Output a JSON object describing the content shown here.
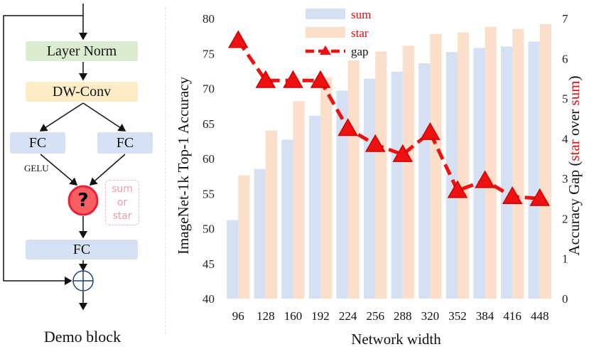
{
  "diagram": {
    "layer_norm": "Layer Norm",
    "dw_conv": "DW-Conv",
    "fc_left": "FC",
    "fc_right": "FC",
    "fc_bottom": "FC",
    "activation": "GELU",
    "question_mark": "?",
    "options": [
      "sum",
      "or",
      "star"
    ],
    "caption": "Demo block"
  },
  "chart_data": {
    "type": "bar",
    "xlabel": "Network width",
    "ylabel": "ImageNet-1k Top-1 Accuracy",
    "y2label_parts": [
      {
        "text": "Accuracy Gap (",
        "color": "#111111"
      },
      {
        "text": "star",
        "color": "#e01010"
      },
      {
        "text": " over ",
        "color": "#111111"
      },
      {
        "text": "sum",
        "color": "#e01010"
      },
      {
        "text": ")",
        "color": "#111111"
      }
    ],
    "categories": [
      "96",
      "128",
      "160",
      "192",
      "224",
      "256",
      "288",
      "320",
      "352",
      "384",
      "416",
      "448"
    ],
    "ylim": [
      40,
      80
    ],
    "yticks": [
      40,
      45,
      50,
      55,
      60,
      65,
      70,
      75,
      80
    ],
    "y2lim": [
      0,
      7
    ],
    "y2ticks": [
      0,
      1,
      2,
      3,
      4,
      5,
      6,
      7
    ],
    "series": [
      {
        "name": "sum",
        "kind": "bar",
        "axis": "left",
        "color": "#d5e0f2",
        "values": [
          51.2,
          58.5,
          62.7,
          66.1,
          69.7,
          71.4,
          72.4,
          73.6,
          75.2,
          75.8,
          76.0,
          76.7
        ]
      },
      {
        "name": "star",
        "kind": "bar",
        "axis": "left",
        "color": "#fbdfca",
        "values": [
          57.6,
          64.0,
          68.2,
          71.6,
          74.0,
          75.3,
          76.1,
          77.8,
          78.0,
          78.8,
          78.5,
          79.2
        ]
      },
      {
        "name": "gap",
        "kind": "line",
        "axis": "right",
        "color": "#ee1111",
        "values": [
          6.45,
          5.45,
          5.45,
          5.45,
          4.25,
          3.85,
          3.6,
          4.15,
          2.7,
          2.95,
          2.55,
          2.5
        ]
      }
    ],
    "legend": {
      "position": "top-center",
      "labels": [
        "sum",
        "star",
        "gap"
      ],
      "colors": [
        "#e01010",
        "#e01010",
        "#111111"
      ]
    }
  }
}
